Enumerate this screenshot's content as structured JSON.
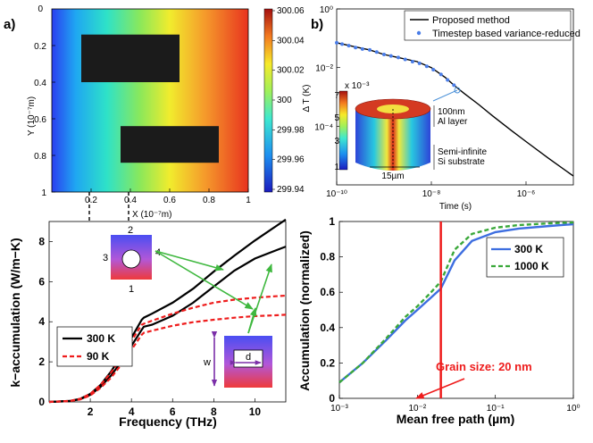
{
  "chart_data": [
    {
      "panel": "a)",
      "type": "heatmap",
      "xlabel": "X (10⁻⁷m)",
      "ylabel": "Y (10⁻⁷m)",
      "xlim": [
        0,
        1
      ],
      "ylim": [
        0,
        1
      ],
      "x_ticks": [
        "0.2",
        "0.4",
        "0.6",
        "0.8",
        "1"
      ],
      "y_ticks": [
        "0",
        "0.2",
        "0.4",
        "0.6",
        "0.8",
        "1"
      ],
      "origin_label": "0",
      "colorbar_ticks": [
        "300.06",
        "300.04",
        "300.02",
        "300",
        "299.98",
        "299.96",
        "299.94"
      ],
      "colorbar_range": [
        299.94,
        300.06
      ],
      "obstacles": [
        {
          "x": [
            0.15,
            0.65
          ],
          "y": [
            0.14,
            0.4
          ]
        },
        {
          "x": [
            0.35,
            0.85
          ],
          "y": [
            0.64,
            0.84
          ]
        }
      ]
    },
    {
      "panel": "b)",
      "type": "line",
      "xscale": "log",
      "yscale": "log",
      "xlabel": "Time (s)",
      "ylabel": "Δ T (K)",
      "xlim": [
        1e-10,
        1e-05
      ],
      "ylim": [
        1e-06,
        1
      ],
      "x_ticks": [
        "10⁻¹⁰",
        "10⁻⁸",
        "10⁻⁶"
      ],
      "y_ticks": [
        "10⁰",
        "10⁻²",
        "10⁻⁴"
      ],
      "series": [
        {
          "name": "Proposed method",
          "style": "line",
          "x": [
            1e-10,
            2e-10,
            5e-10,
            1e-09,
            2e-09,
            5e-09,
            1e-08,
            2e-08,
            3e-08,
            5e-08,
            1e-07,
            2e-07,
            5e-07,
            1e-06,
            3e-06,
            1e-05
          ],
          "y": [
            0.07,
            0.055,
            0.04,
            0.028,
            0.022,
            0.016,
            0.01,
            0.0045,
            0.0025,
            0.0013,
            0.00055,
            0.00022,
            7e-05,
            3e-05,
            8e-06,
            2e-06
          ]
        },
        {
          "name": "Timestep based variance-reduced",
          "style": "dots",
          "x": [
            1e-10,
            1.3e-10,
            1.8e-10,
            2.5e-10,
            3.5e-10,
            5e-10,
            7e-10,
            1e-09,
            1.4e-09,
            2e-09,
            2.8e-09,
            4e-09,
            5.6e-09,
            8e-09,
            1.1e-08,
            1.6e-08,
            2.2e-08,
            3e-08
          ],
          "y": [
            0.07,
            0.063,
            0.056,
            0.048,
            0.043,
            0.04,
            0.034,
            0.028,
            0.025,
            0.022,
            0.019,
            0.016,
            0.014,
            0.011,
            0.0085,
            0.0058,
            0.0038,
            0.0025
          ]
        }
      ],
      "inset": {
        "colorbar_exp": "x 10⁻³",
        "colorbar_ticks": [
          "7",
          "5",
          "3",
          "1"
        ],
        "labels": [
          "100nm",
          "Al layer",
          "Semi-infinite",
          "Si substrate",
          "15µm"
        ]
      }
    },
    {
      "panel": "c)",
      "type": "line",
      "xlabel": "Frequency (THz)",
      "ylabel": "k−accumulation (W/m−K)",
      "xlim": [
        0,
        11.5
      ],
      "ylim": [
        0,
        9
      ],
      "x_ticks": [
        "2",
        "4",
        "6",
        "8",
        "10"
      ],
      "y_ticks": [
        "0",
        "2",
        "4",
        "6",
        "8"
      ],
      "series": [
        {
          "name": "300 K",
          "id": "300K-upper",
          "style": "solid",
          "x": [
            0,
            1,
            1.5,
            2,
            2.5,
            3,
            3.5,
            4,
            4.5,
            4.6,
            5,
            6,
            7,
            8,
            9,
            10,
            11,
            11.5
          ],
          "y": [
            0,
            0.05,
            0.15,
            0.4,
            0.85,
            1.5,
            2.3,
            3.2,
            4.1,
            4.2,
            4.4,
            4.95,
            5.65,
            6.5,
            7.3,
            8.05,
            8.75,
            9.1
          ]
        },
        {
          "name": "300 K",
          "id": "300K-lower",
          "style": "solid",
          "x": [
            0,
            1,
            1.5,
            2,
            2.5,
            3,
            3.5,
            4,
            4.5,
            4.6,
            5,
            6,
            7,
            8,
            9,
            10,
            11,
            11.5
          ],
          "y": [
            0,
            0.04,
            0.13,
            0.35,
            0.75,
            1.3,
            2.0,
            2.8,
            3.6,
            3.75,
            3.85,
            4.3,
            4.95,
            5.75,
            6.55,
            7.15,
            7.55,
            7.75
          ]
        },
        {
          "name": "90 K",
          "id": "90K-upper",
          "style": "dashed",
          "x": [
            0,
            1,
            1.5,
            2,
            2.5,
            3,
            3.5,
            4,
            4.5,
            4.6,
            5,
            6,
            7,
            8,
            9,
            10,
            11,
            11.5
          ],
          "y": [
            0,
            0.05,
            0.15,
            0.4,
            0.85,
            1.45,
            2.2,
            3.05,
            3.85,
            3.9,
            4.05,
            4.4,
            4.7,
            4.95,
            5.1,
            5.2,
            5.27,
            5.3
          ]
        },
        {
          "name": "90 K",
          "id": "90K-lower",
          "style": "dashed",
          "x": [
            0,
            1,
            1.5,
            2,
            2.5,
            3,
            3.5,
            4,
            4.5,
            4.6,
            5,
            6,
            7,
            8,
            9,
            10,
            11,
            11.5
          ],
          "y": [
            0,
            0.04,
            0.12,
            0.32,
            0.7,
            1.2,
            1.85,
            2.6,
            3.35,
            3.45,
            3.55,
            3.8,
            3.98,
            4.1,
            4.2,
            4.28,
            4.32,
            4.35
          ]
        }
      ],
      "legend": [
        {
          "name": "300 K",
          "style": "solid"
        },
        {
          "name": "90 K",
          "style": "dashed"
        }
      ],
      "inset_labels": {
        "top": "2",
        "left": "3",
        "right": "4",
        "bottom": "1",
        "width": "w",
        "diameter": "d"
      }
    },
    {
      "panel": "d)",
      "type": "line",
      "xscale": "log",
      "xlabel": "Mean free path (µm)",
      "ylabel": "Accumulation (normalized)",
      "xlim": [
        0.001,
        1
      ],
      "ylim": [
        0,
        1
      ],
      "x_ticks": [
        "10⁻³",
        "10⁻²",
        "10⁻¹",
        "10⁰"
      ],
      "y_ticks": [
        "0",
        "0.2",
        "0.4",
        "0.6",
        "0.8",
        "1"
      ],
      "series": [
        {
          "name": "300 K",
          "style": "solid",
          "color": "#3d6ee0",
          "x": [
            0.001,
            0.002,
            0.004,
            0.007,
            0.01,
            0.015,
            0.02,
            0.03,
            0.05,
            0.1,
            0.2,
            0.5,
            1
          ],
          "y": [
            0.09,
            0.2,
            0.33,
            0.44,
            0.5,
            0.57,
            0.62,
            0.78,
            0.89,
            0.94,
            0.96,
            0.975,
            0.985
          ]
        },
        {
          "name": "1000 K",
          "style": "dashed",
          "color": "#3aa83a",
          "x": [
            0.001,
            0.002,
            0.004,
            0.007,
            0.01,
            0.015,
            0.02,
            0.03,
            0.05,
            0.1,
            0.2,
            0.5,
            1
          ],
          "y": [
            0.09,
            0.2,
            0.34,
            0.46,
            0.52,
            0.6,
            0.66,
            0.84,
            0.93,
            0.965,
            0.98,
            0.99,
            0.995
          ]
        }
      ],
      "grain_size_x": 0.02,
      "annotation": "Grain size: 20 nm"
    }
  ]
}
